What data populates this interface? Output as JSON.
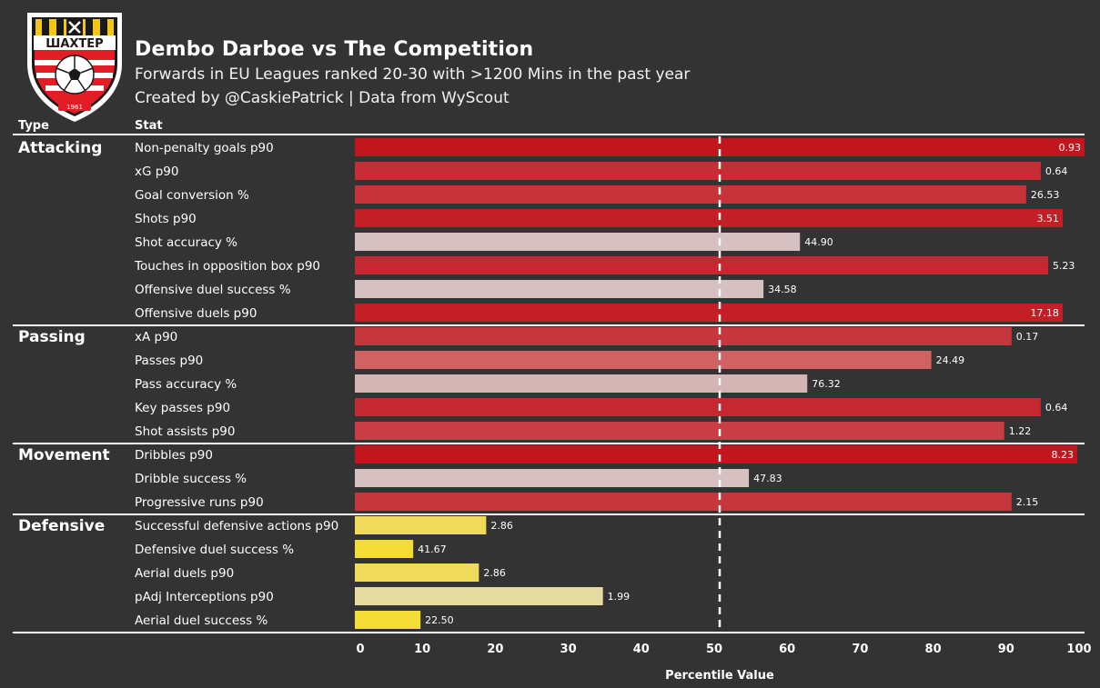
{
  "header": {
    "title": "Dembo Darboe vs The Competition",
    "subtitle": "Forwards in EU Leagues ranked 20-30 with >1200 Mins in the past year",
    "credit": "Created by @CaskiePatrick | Data from WyScout",
    "col_type": "Type",
    "col_stat": "Stat",
    "logo_text": "ШАХТЕР",
    "logo_year": "1961"
  },
  "chart_data": {
    "type": "bar",
    "orientation": "horizontal",
    "xlabel": "Percentile Value",
    "xlim": [
      0,
      100
    ],
    "xticks": [
      0,
      10,
      20,
      30,
      40,
      50,
      60,
      70,
      80,
      90,
      100
    ],
    "reference_line": 50,
    "groups": [
      {
        "name": "Attacking",
        "stats": [
          {
            "label": "Non-penalty goals p90",
            "percentile": 100,
            "value": "0.93",
            "color": "#c1161e"
          },
          {
            "label": "xG p90",
            "percentile": 94,
            "value": "0.64",
            "color": "#c62d34"
          },
          {
            "label": "Goal conversion %",
            "percentile": 92,
            "value": "26.53",
            "color": "#c6343a"
          },
          {
            "label": "Shots p90",
            "percentile": 97,
            "value": "3.51",
            "color": "#c41f27"
          },
          {
            "label": "Shot accuracy %",
            "percentile": 61,
            "value": "44.90",
            "color": "#d6c0c1"
          },
          {
            "label": "Touches in opposition box p90",
            "percentile": 95,
            "value": "5.23",
            "color": "#c62831"
          },
          {
            "label": "Offensive duel success %",
            "percentile": 56,
            "value": "34.58",
            "color": "#d6c0c1"
          },
          {
            "label": "Offensive duels p90",
            "percentile": 97,
            "value": "17.18",
            "color": "#c41f27"
          }
        ]
      },
      {
        "name": "Passing",
        "stats": [
          {
            "label": "xA p90",
            "percentile": 90,
            "value": "0.17",
            "color": "#c6363d"
          },
          {
            "label": "Passes p90",
            "percentile": 79,
            "value": "24.49",
            "color": "#d06264"
          },
          {
            "label": "Pass accuracy %",
            "percentile": 62,
            "value": "76.32",
            "color": "#d4b4b5"
          },
          {
            "label": "Key passes p90",
            "percentile": 94,
            "value": "0.64",
            "color": "#c62831"
          },
          {
            "label": "Shot assists p90",
            "percentile": 89,
            "value": "1.22",
            "color": "#c83e44"
          }
        ]
      },
      {
        "name": "Movement",
        "stats": [
          {
            "label": "Dribbles p90",
            "percentile": 99,
            "value": "8.23",
            "color": "#c1161e"
          },
          {
            "label": "Dribble success %",
            "percentile": 54,
            "value": "47.83",
            "color": "#d6c0c1"
          },
          {
            "label": "Progressive runs p90",
            "percentile": 90,
            "value": "2.15",
            "color": "#c6363d"
          }
        ]
      },
      {
        "name": "Defensive",
        "stats": [
          {
            "label": "Successful defensive actions p90",
            "percentile": 18,
            "value": "2.86",
            "color": "#f0da5a"
          },
          {
            "label": "Defensive duel success %",
            "percentile": 8,
            "value": "41.67",
            "color": "#f3dc35"
          },
          {
            "label": "Aerial duels p90",
            "percentile": 17,
            "value": "2.86",
            "color": "#f0da5a"
          },
          {
            "label": "pAdj Interceptions p90",
            "percentile": 34,
            "value": "1.99",
            "color": "#e6dca2"
          },
          {
            "label": "Aerial duel success %",
            "percentile": 9,
            "value": "22.50",
            "color": "#f3dc35"
          }
        ]
      }
    ]
  },
  "colors": {
    "background": "#333333",
    "text": "#ffffff",
    "reference_line": "#ffffff"
  }
}
